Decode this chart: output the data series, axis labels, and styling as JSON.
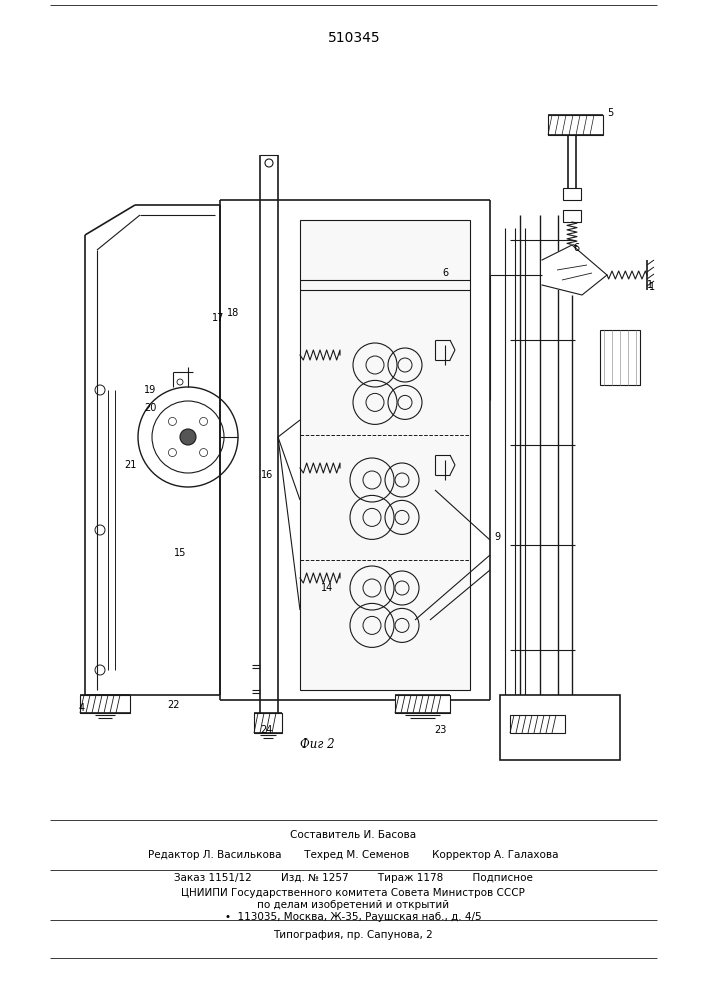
{
  "patent_number": "510345",
  "fig_label": "Фиг 2",
  "bg_color": "#ffffff",
  "line_color": "#1a1a1a",
  "fig_size": [
    7.07,
    10.0
  ],
  "dpi": 100,
  "footer_lines": [
    "Составитель И. Басова",
    "Редактор Л. Василькова       Техред М. Семенов       Корректор А. Галахова",
    "Заказ 1151/12         Изд. № 1257         Тираж 1178         Подписное",
    "ЦНИИПИ Государственного комитета Совета Министров СССР",
    "по делам изобретений и открытий",
    "•  113035, Москва, Ж-35, Раушская наб., д. 4/5",
    "Типография, пр. Сапунова, 2"
  ]
}
